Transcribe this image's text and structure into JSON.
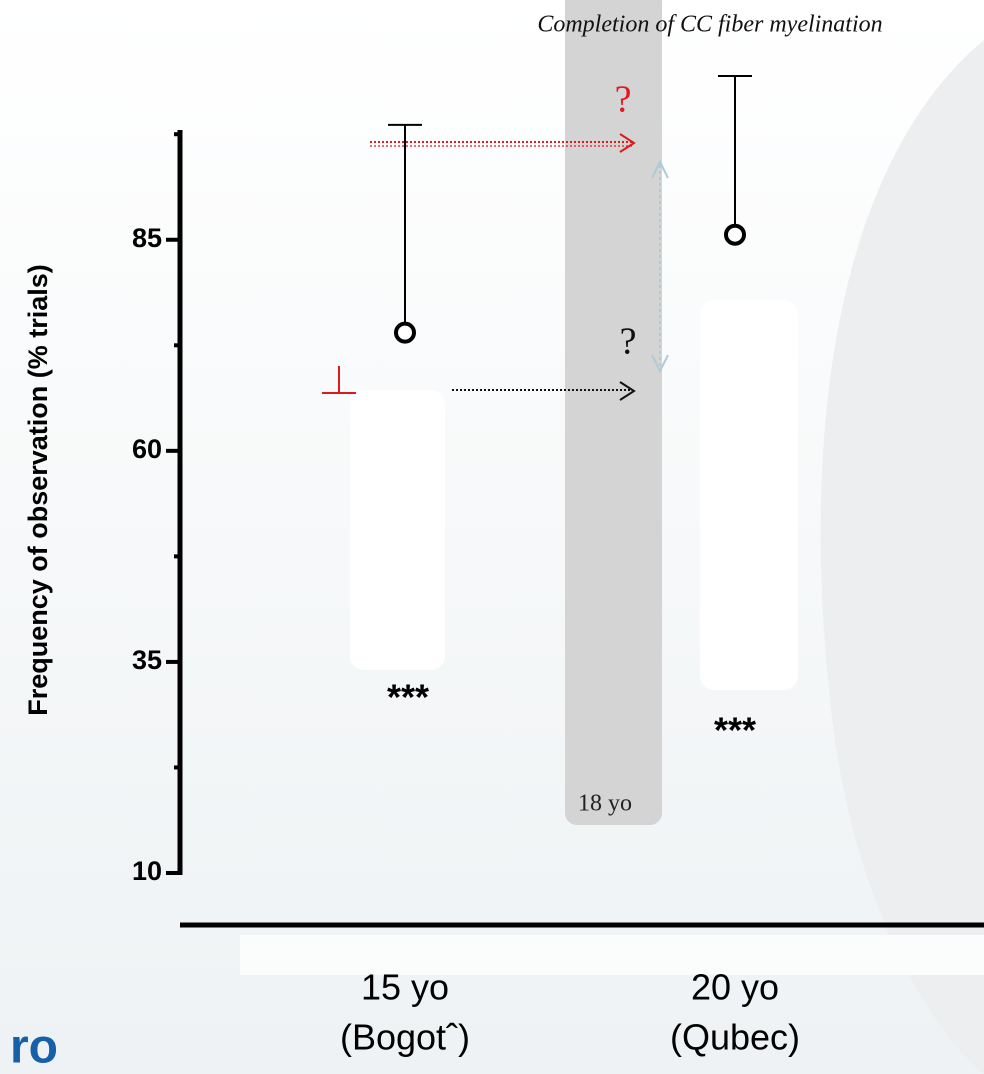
{
  "chart_data": {
    "type": "errorbar",
    "title": "Completion of CC fiber myelination",
    "ylabel": "Frequency of observation (% trials)",
    "categories": [
      "15 yo",
      "20 yo"
    ],
    "category_notes": [
      "(Bogotˆ)",
      "(Qubec)"
    ],
    "values": [
      74,
      85.6
    ],
    "errors": [
      24.6,
      18.8
    ],
    "color": "#000000",
    "ylim": [
      10,
      98
    ],
    "yticks": [
      10,
      35,
      60,
      85
    ],
    "yminorticks": [
      22.5,
      47.5,
      72.5,
      97.5
    ],
    "annotations": [
      {
        "text": "18 yo",
        "color": "#222222"
      },
      {
        "text": "?",
        "color": "#e0191e"
      },
      {
        "text": "?",
        "color": "#111111"
      },
      {
        "text": "***",
        "color": "#000000"
      },
      {
        "text": "***",
        "color": "#000000"
      }
    ],
    "logo_text": "ro"
  }
}
